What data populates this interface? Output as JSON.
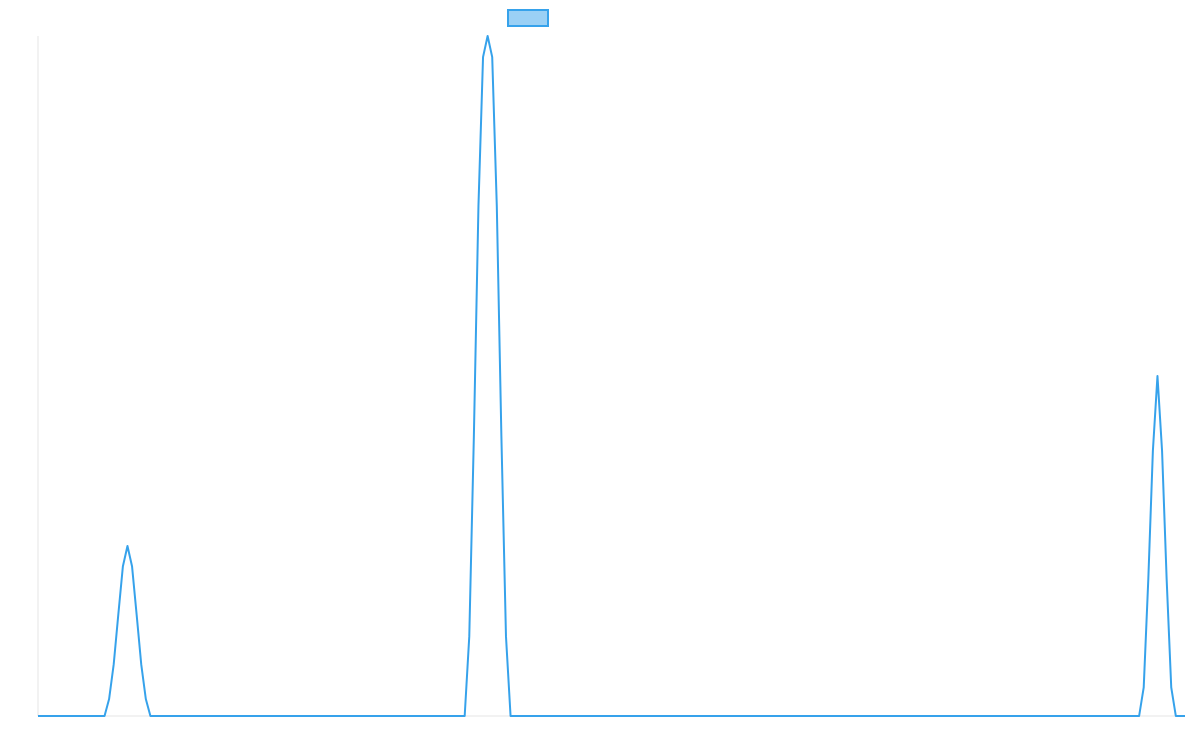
{
  "chart_data": {
    "type": "line",
    "title": "",
    "xlabel": "",
    "ylabel": "",
    "grid": false,
    "legend": {
      "position": "top-center",
      "entries": [
        {
          "label": "",
          "color": "#36a2eb",
          "fill": "#9ad0f5"
        }
      ]
    },
    "xlim": [
      0,
      1
    ],
    "ylim": [
      0,
      1
    ],
    "series": [
      {
        "color": "#36a2eb",
        "x": [
          0.0,
          0.05,
          0.058,
          0.062,
          0.066,
          0.07,
          0.074,
          0.078,
          0.082,
          0.086,
          0.09,
          0.094,
          0.098,
          0.33,
          0.372,
          0.376,
          0.38,
          0.384,
          0.388,
          0.392,
          0.396,
          0.4,
          0.404,
          0.408,
          0.412,
          0.416,
          0.42,
          0.96,
          0.96,
          0.964,
          0.968,
          0.972,
          0.976,
          0.98,
          0.984,
          0.988,
          0.992,
          0.996,
          1.0
        ],
        "values": [
          0.0,
          0.0,
          0.0,
          0.025,
          0.076,
          0.149,
          0.22,
          0.25,
          0.22,
          0.149,
          0.076,
          0.025,
          0.0,
          0.0,
          0.0,
          0.117,
          0.411,
          0.75,
          0.969,
          1.0,
          0.969,
          0.75,
          0.411,
          0.117,
          0.0,
          0.0,
          0.0,
          0.0,
          0.0,
          0.042,
          0.201,
          0.39,
          0.5,
          0.39,
          0.201,
          0.042,
          0.0,
          0.0,
          0.0
        ]
      }
    ]
  }
}
